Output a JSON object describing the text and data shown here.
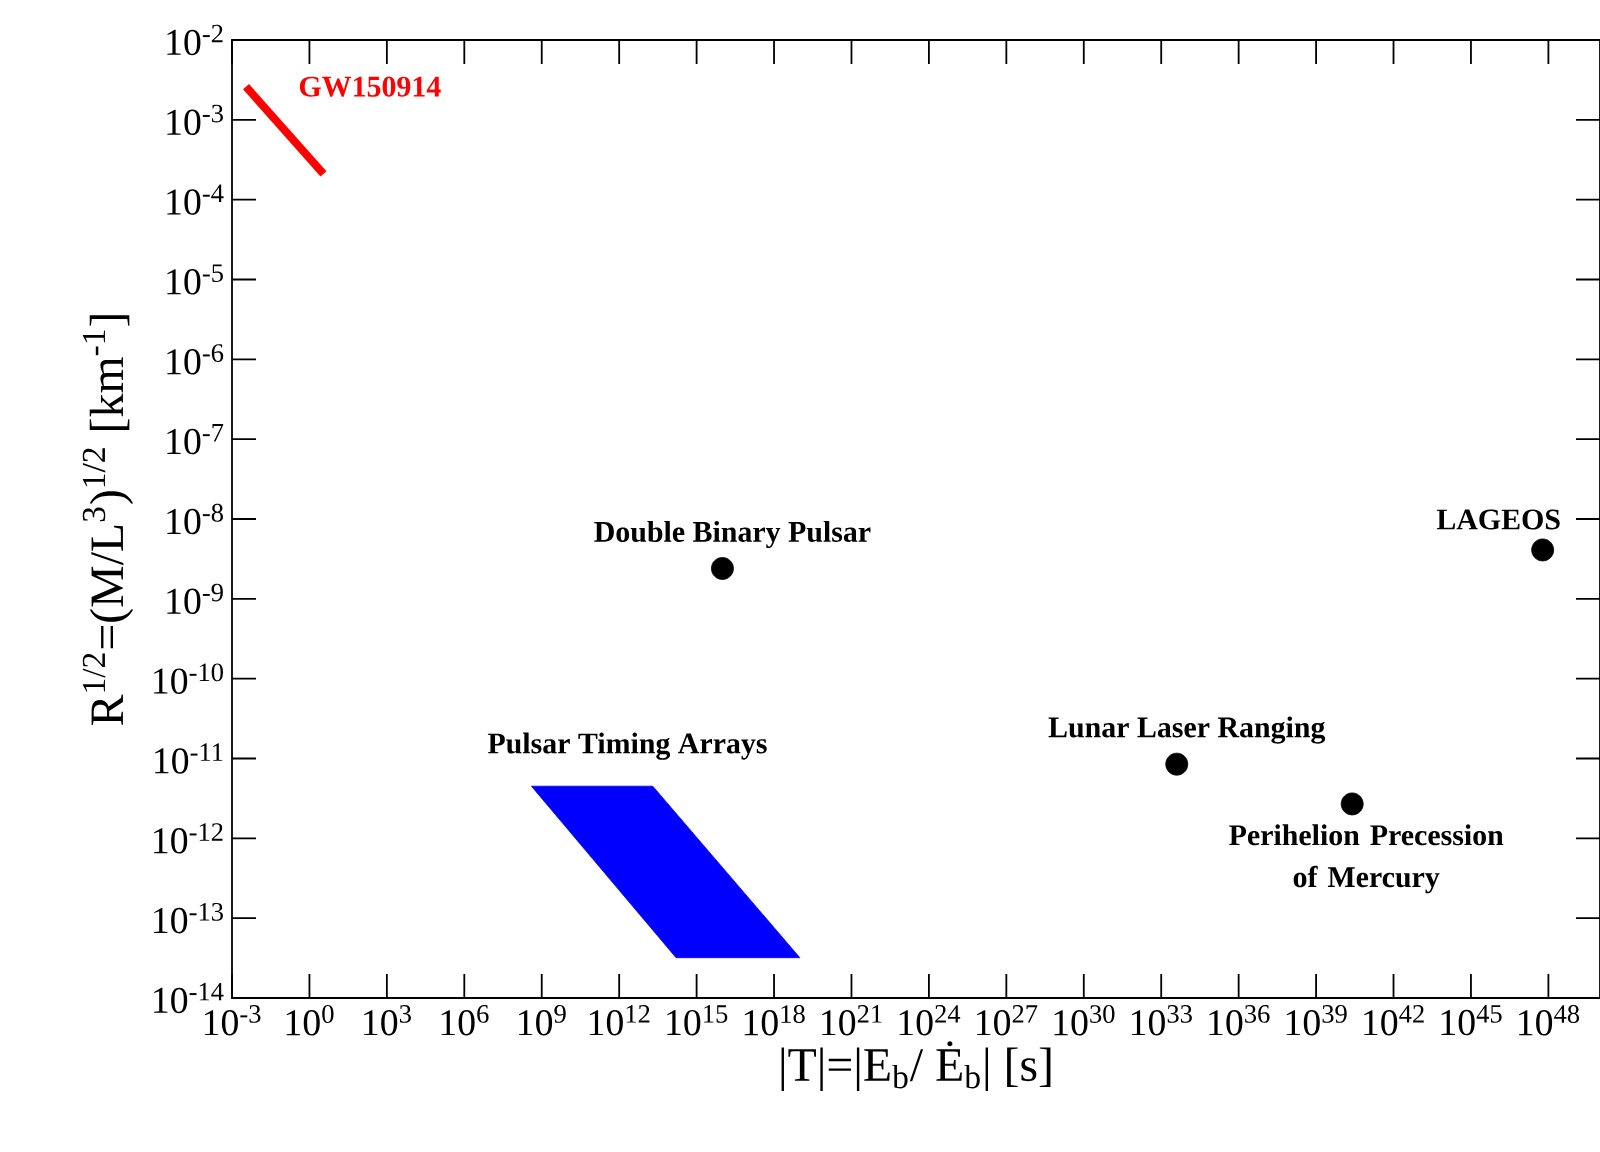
{
  "chart_data": {
    "type": "scatter",
    "xlabel": "|T|=|E$_{b}$/ Ė$_{b}$| [s]",
    "ylabel": "R$^{1/2}$=(M/L$^{3}$)$^{1/2}$ [km$^{-1}$]",
    "log": "xy",
    "marker": "circle",
    "xlim": [
      0.001,
      1e+50
    ],
    "ylim": [
      1e-14,
      0.01
    ],
    "xticks": [
      {
        "value": 0.001,
        "label": "10$^{-3}$"
      },
      {
        "value": 1.0,
        "label": "10$^{0}$"
      },
      {
        "value": 1000.0,
        "label": "10$^{3}$"
      },
      {
        "value": 1000000.0,
        "label": "10$^{6}$"
      },
      {
        "value": 1000000000.0,
        "label": "10$^{9}$"
      },
      {
        "value": 1000000000000.0,
        "label": "10$^{12}$"
      },
      {
        "value": 1000000000000000.0,
        "label": "10$^{15}$"
      },
      {
        "value": 1e+18,
        "label": "10$^{18}$"
      },
      {
        "value": 1e+21,
        "label": "10$^{21}$"
      },
      {
        "value": 1e+24,
        "label": "10$^{24}$"
      },
      {
        "value": 1e+27,
        "label": "10$^{27}$"
      },
      {
        "value": 1e+30,
        "label": "10$^{30}$"
      },
      {
        "value": 1e+33,
        "label": "10$^{33}$"
      },
      {
        "value": 1e+36,
        "label": "10$^{36}$"
      },
      {
        "value": 1e+39,
        "label": "10$^{39}$"
      },
      {
        "value": 1e+42,
        "label": "10$^{42}$"
      },
      {
        "value": 1e+45,
        "label": "10$^{45}$"
      },
      {
        "value": 1e+48,
        "label": "10$^{48}$"
      }
    ],
    "yticks": [
      {
        "value": 1e-14,
        "label": "10$^{-14}$"
      },
      {
        "value": 1e-13,
        "label": "10$^{-13}$"
      },
      {
        "value": 1e-12,
        "label": "10$^{-12}$"
      },
      {
        "value": 1e-11,
        "label": "10$^{-11}$"
      },
      {
        "value": 1e-10,
        "label": "10$^{-10}$"
      },
      {
        "value": 1e-09,
        "label": "10$^{-9}$"
      },
      {
        "value": 1e-08,
        "label": "10$^{-8}$"
      },
      {
        "value": 1e-07,
        "label": "10$^{-7}$"
      },
      {
        "value": 1e-06,
        "label": "10$^{-6}$"
      },
      {
        "value": 1e-05,
        "label": "10$^{-5}$"
      },
      {
        "value": 0.0001,
        "label": "10$^{-4}$"
      },
      {
        "value": 0.001,
        "label": "10$^{-3}$"
      },
      {
        "value": 0.01,
        "label": "10$^{-2}$"
      }
    ],
    "series": [
      {
        "type": "line",
        "marker": "none",
        "color": "#ff0000",
        "x": [
          0.0035,
          3.5
        ],
        "values": [
          0.0026,
          0.00021
        ]
      },
      {
        "color": "#000000",
        "x": [
          1e+16,
          4e+33,
          2.5e+40,
          6e+47
        ],
        "values": [
          2.4e-09,
          8.5e-12,
          2.7e-12,
          4.1e-09
        ]
      },
      {
        "type": "area",
        "marker": "none",
        "color": "#0000ff",
        "x": [
          400000000.0,
          20000000000000.0,
          1e+19,
          160000000000000.0
        ],
        "values": [
          4.5e-12,
          4.5e-12,
          3.2e-14,
          3.2e-14
        ]
      }
    ],
    "annotations": [
      {
        "text": "GW150914",
        "x": 0.0035,
        "y": 0.0026
      },
      {
        "text": "Double Binary Pulsar",
        "x": 1e+16,
        "y": 2.4e-09
      },
      {
        "text": "LAGEOS",
        "x": 6e+47,
        "y": 4.1e-09
      },
      {
        "text": "Pulsar Timing Arrays",
        "x": 400000000.0,
        "y": 4.5e-12
      },
      {
        "text": "Lunar Laser Ranging",
        "x": 4e+33,
        "y": 8.5e-12
      },
      {
        "text": "Perihelion Precession of Mercury",
        "x": 2.5e+40,
        "y": 2.7e-12
      }
    ]
  }
}
